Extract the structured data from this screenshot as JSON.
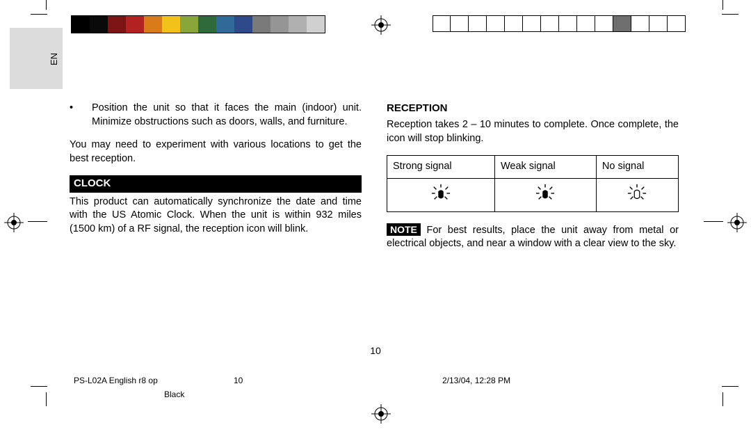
{
  "lang_badge": "EN",
  "left_column": {
    "bullet": "Position the unit so that it faces the main (indoor) unit.  Minimize obstructions such as doors, walls, and furniture.",
    "para1": "You may need to experiment with various locations to get the best reception.",
    "clock_heading": "CLOCK",
    "clock_body": "This product can automatically synchronize the date and time with the US Atomic Clock.  When the unit is within 932 miles (1500 km) of a RF signal, the reception icon will blink."
  },
  "right_column": {
    "reception_heading": "RECEPTION",
    "reception_body": "Reception takes 2 – 10 minutes to complete.  Once complete, the icon will stop blinking.",
    "table": {
      "c1": "Strong signal",
      "c2": "Weak signal",
      "c3": "No signal"
    },
    "note_label": "NOTE",
    "note_body": " For best results, place the unit away from metal or electrical objects, and near a window with a clear view to the sky."
  },
  "page_number": "10",
  "footer": {
    "doc": "PS-L02A English r8 op",
    "page": "10",
    "timestamp": "2/13/04, 12:28 PM",
    "ink": "Black"
  },
  "printer_marks": {
    "color_swatches": [
      "#000000",
      "#0a0a0a",
      "#7d1414",
      "#b22222",
      "#d97b18",
      "#f2c21a",
      "#89a63a",
      "#2f6b3a",
      "#2f6a98",
      "#2f4a8a",
      "#7a7a7a",
      "#959595",
      "#b0b0b0",
      "#d0d0d0"
    ],
    "empty_box_count": 14,
    "filled_box_index": 10,
    "filled_box_color": "#6f6f6f"
  },
  "signal_icons": {
    "strong": {
      "rays": true,
      "body_fill": "#000000"
    },
    "weak": {
      "rays": true,
      "body_fill": "#000000"
    },
    "none": {
      "rays": true,
      "body_fill": "none",
      "body_stroke": "#000000"
    }
  }
}
